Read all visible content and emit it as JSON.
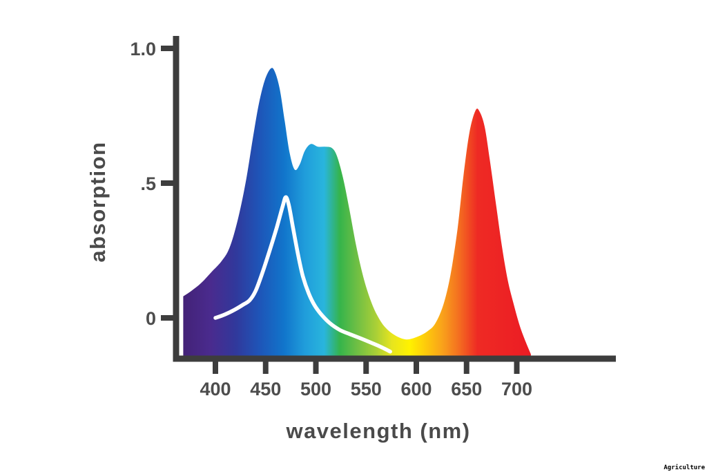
{
  "page": {
    "background": "#ffffff"
  },
  "watermark": {
    "text": "Agriculture"
  },
  "chart_data": {
    "type": "area",
    "title": "",
    "xlabel": "wavelength (nm)",
    "ylabel": "absorption",
    "x_ticks": [
      400,
      450,
      500,
      550,
      600,
      650,
      700
    ],
    "y_ticks": [
      {
        "value": 1.0,
        "label": "1.0"
      },
      {
        "value": 0.5,
        "label": ".5"
      },
      {
        "value": 0.0,
        "label": "0"
      }
    ],
    "xlim": [
      368,
      714
    ],
    "ylim": [
      -0.14,
      1.05
    ],
    "grid": false,
    "legend": "none",
    "axis_color": "#3d3d3d",
    "series": [
      {
        "name": "pigment-absorption-spectrum",
        "style": "filled-area-spectrum-gradient",
        "points": [
          [
            368,
            0.08
          ],
          [
            376,
            0.1
          ],
          [
            386,
            0.13
          ],
          [
            396,
            0.17
          ],
          [
            406,
            0.21
          ],
          [
            414,
            0.26
          ],
          [
            422,
            0.36
          ],
          [
            430,
            0.5
          ],
          [
            437,
            0.66
          ],
          [
            443,
            0.79
          ],
          [
            449,
            0.88
          ],
          [
            455,
            0.925
          ],
          [
            459,
            0.915
          ],
          [
            464,
            0.85
          ],
          [
            469,
            0.73
          ],
          [
            474,
            0.61
          ],
          [
            479,
            0.55
          ],
          [
            484,
            0.57
          ],
          [
            489,
            0.62
          ],
          [
            495,
            0.645
          ],
          [
            502,
            0.635
          ],
          [
            509,
            0.635
          ],
          [
            516,
            0.63
          ],
          [
            521,
            0.6
          ],
          [
            527,
            0.52
          ],
          [
            533,
            0.41
          ],
          [
            540,
            0.27
          ],
          [
            547,
            0.155
          ],
          [
            554,
            0.07
          ],
          [
            561,
            0.01
          ],
          [
            569,
            -0.035
          ],
          [
            579,
            -0.065
          ],
          [
            590,
            -0.08
          ],
          [
            601,
            -0.07
          ],
          [
            611,
            -0.05
          ],
          [
            619,
            -0.02
          ],
          [
            627,
            0.05
          ],
          [
            634,
            0.16
          ],
          [
            641,
            0.33
          ],
          [
            647,
            0.53
          ],
          [
            653,
            0.69
          ],
          [
            659,
            0.77
          ],
          [
            663,
            0.765
          ],
          [
            668,
            0.71
          ],
          [
            673,
            0.59
          ],
          [
            679,
            0.43
          ],
          [
            685,
            0.27
          ],
          [
            691,
            0.14
          ],
          [
            697,
            0.05
          ],
          [
            703,
            -0.03
          ],
          [
            709,
            -0.09
          ],
          [
            714,
            -0.135
          ]
        ]
      },
      {
        "name": "white-overlay-curve",
        "style": "line",
        "color": "#ffffff",
        "points": [
          [
            400,
            0.0
          ],
          [
            409,
            0.012
          ],
          [
            419,
            0.03
          ],
          [
            428,
            0.05
          ],
          [
            434,
            0.065
          ],
          [
            440,
            0.1
          ],
          [
            447,
            0.17
          ],
          [
            454,
            0.25
          ],
          [
            461,
            0.335
          ],
          [
            467,
            0.415
          ],
          [
            470,
            0.448
          ],
          [
            473,
            0.42
          ],
          [
            477,
            0.34
          ],
          [
            482,
            0.24
          ],
          [
            487,
            0.155
          ],
          [
            493,
            0.09
          ],
          [
            499,
            0.045
          ],
          [
            506,
            0.01
          ],
          [
            514,
            -0.02
          ],
          [
            524,
            -0.045
          ],
          [
            535,
            -0.062
          ],
          [
            546,
            -0.078
          ],
          [
            557,
            -0.095
          ],
          [
            566,
            -0.11
          ],
          [
            574,
            -0.125
          ]
        ]
      }
    ],
    "gradient_stops": [
      {
        "offset": 0.0,
        "color": "#432277"
      },
      {
        "offset": 0.08,
        "color": "#4a2b8e"
      },
      {
        "offset": 0.15,
        "color": "#31389b"
      },
      {
        "offset": 0.22,
        "color": "#1e55b8"
      },
      {
        "offset": 0.29,
        "color": "#1175cb"
      },
      {
        "offset": 0.35,
        "color": "#209ddb"
      },
      {
        "offset": 0.405,
        "color": "#29b5dd"
      },
      {
        "offset": 0.45,
        "color": "#35b44b"
      },
      {
        "offset": 0.5,
        "color": "#70bf44"
      },
      {
        "offset": 0.555,
        "color": "#abd036"
      },
      {
        "offset": 0.6,
        "color": "#e8e51e"
      },
      {
        "offset": 0.65,
        "color": "#fff200"
      },
      {
        "offset": 0.7,
        "color": "#fdc70c"
      },
      {
        "offset": 0.745,
        "color": "#f9a11b"
      },
      {
        "offset": 0.79,
        "color": "#f47020"
      },
      {
        "offset": 0.845,
        "color": "#ee2a24"
      },
      {
        "offset": 1.0,
        "color": "#ec1c24"
      }
    ]
  }
}
